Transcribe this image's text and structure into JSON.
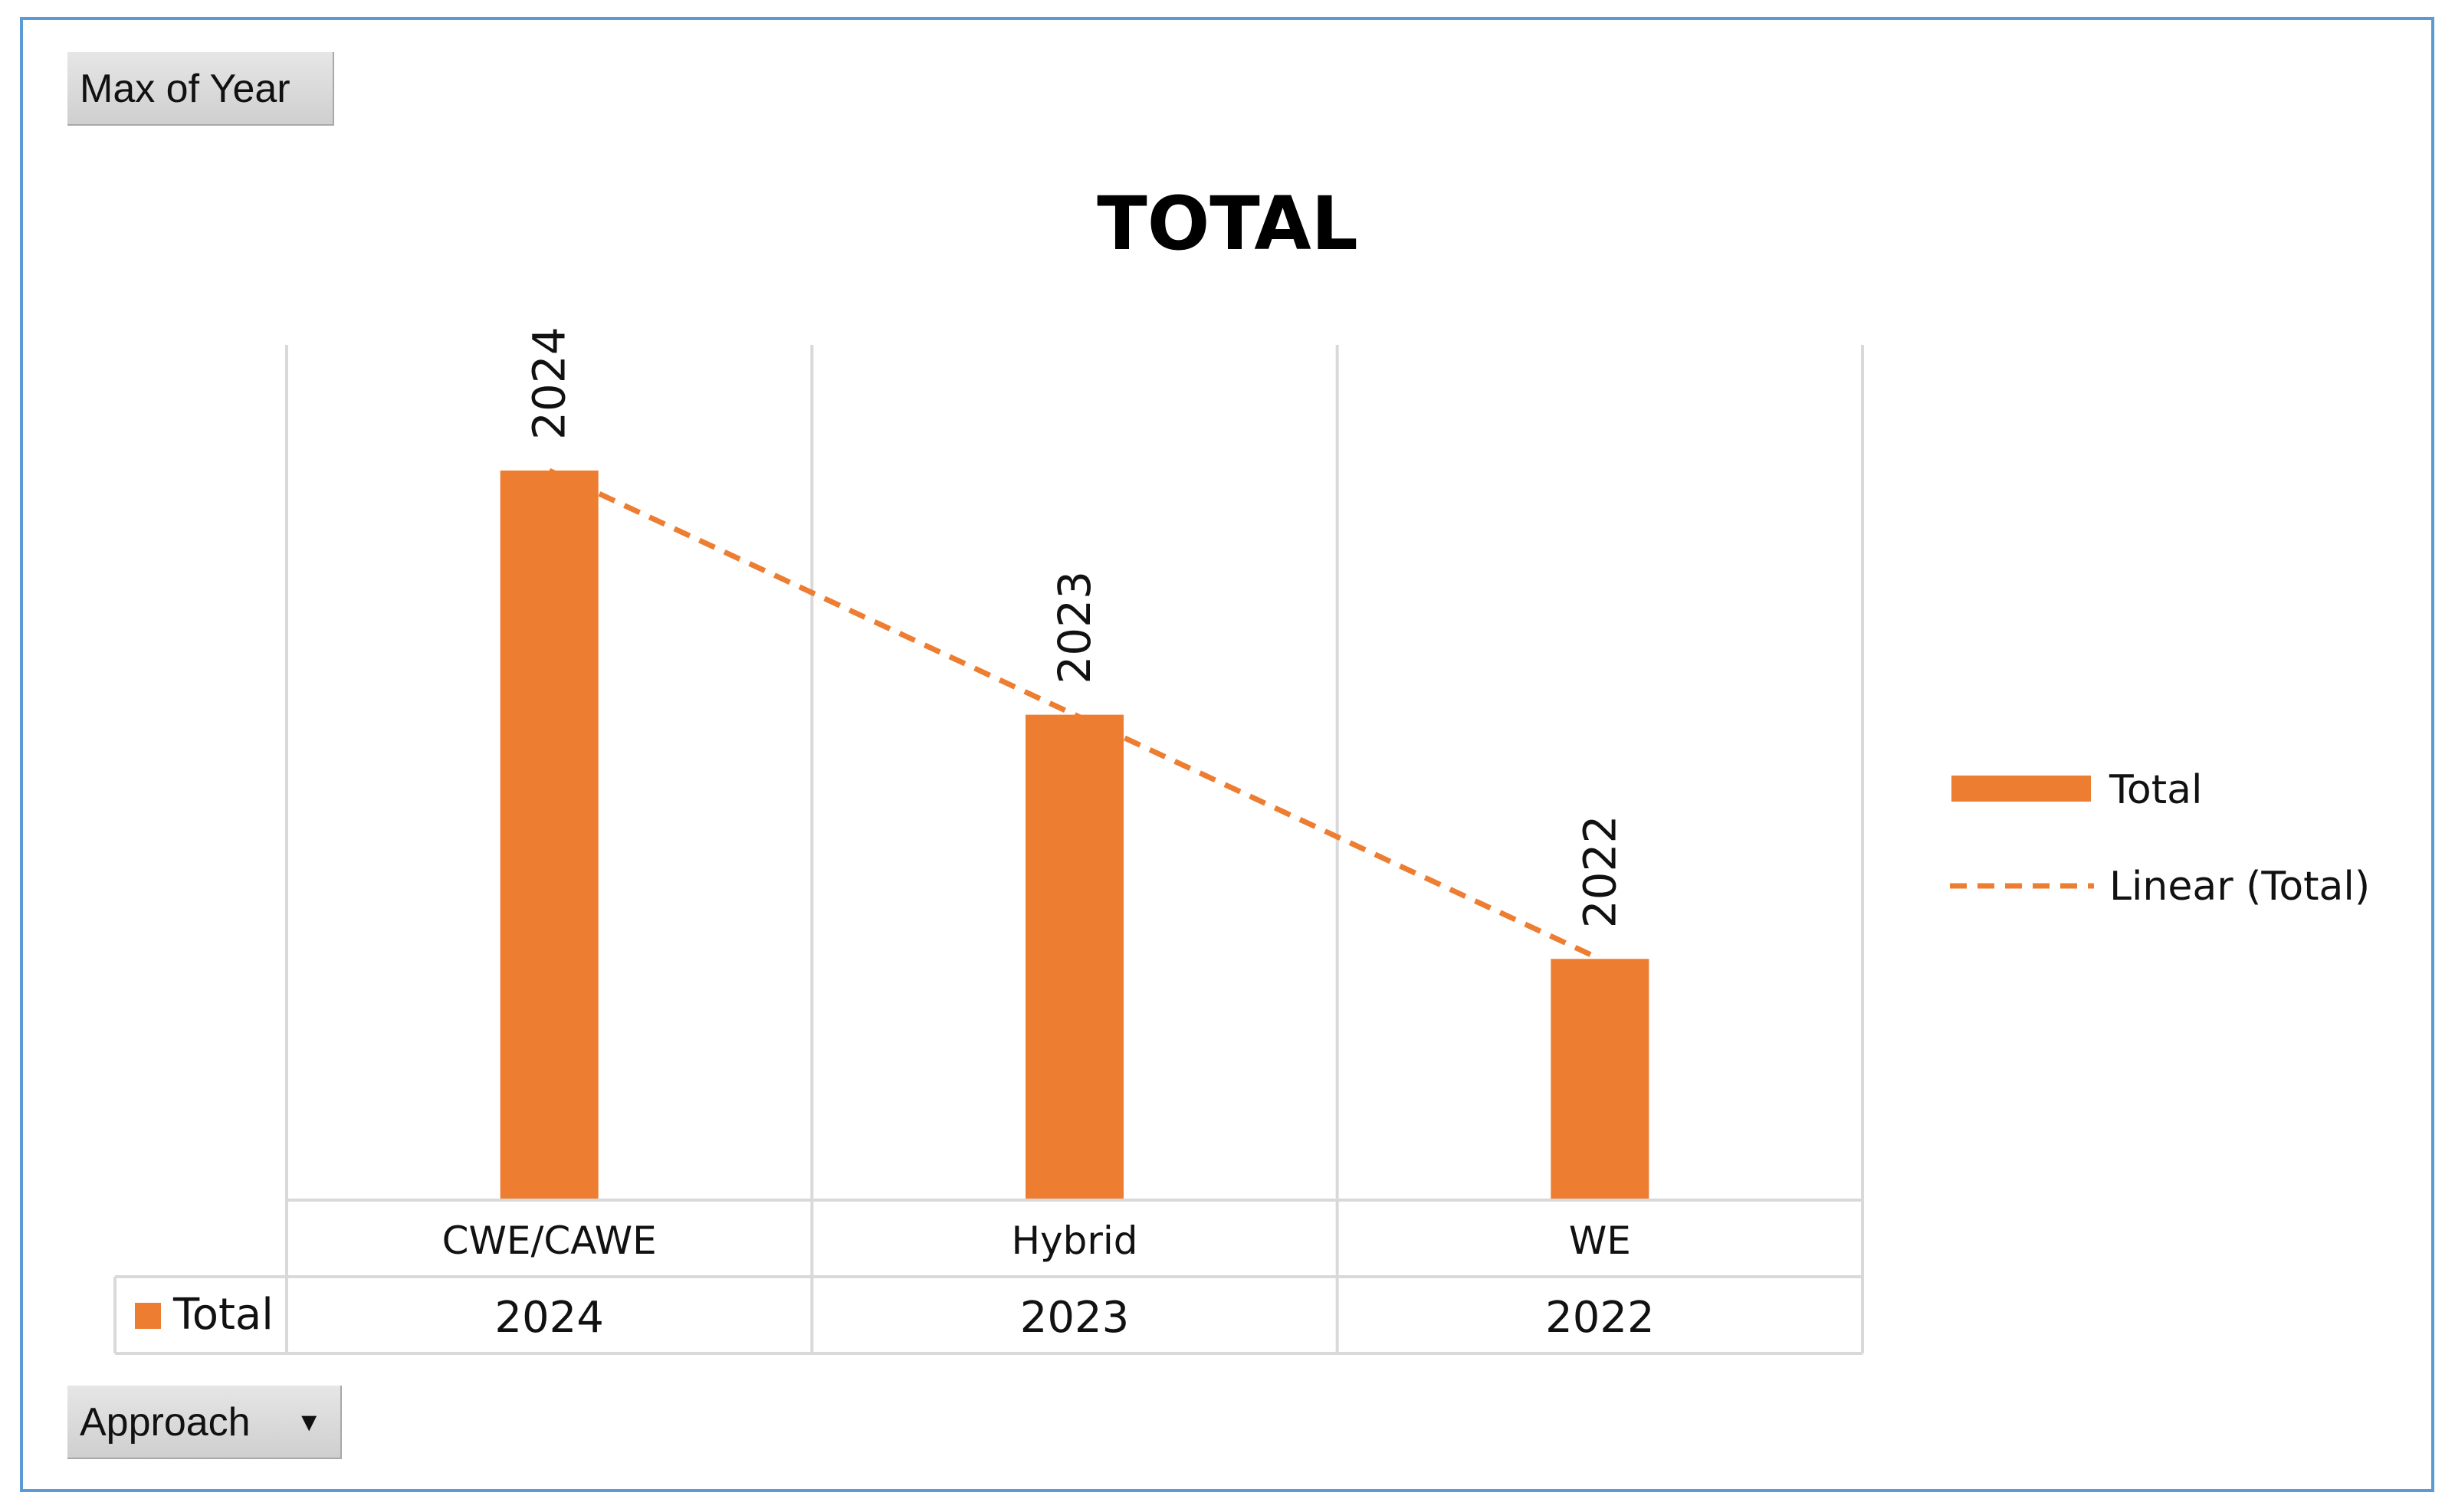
{
  "field_buttons": {
    "values_field": "Max of Year",
    "axis_field": "Approach",
    "dropdown_icon": "triangle-down-icon"
  },
  "colors": {
    "bar": "#ed7d31",
    "trendline": "#ed7d31",
    "gridline": "#d9d9d9",
    "frame": "#5b9bd5"
  },
  "chart_data": {
    "type": "bar",
    "title": "TOTAL",
    "categories": [
      "CWE/CAWE",
      "Hybrid",
      "WE"
    ],
    "series": [
      {
        "name": "Total",
        "values": [
          2024,
          2023,
          2022
        ]
      }
    ],
    "data_labels": [
      "2024",
      "2023",
      "2022"
    ],
    "trendline": {
      "type": "linear",
      "name": "Linear (Total)",
      "style": "dashed"
    },
    "legend_position": "right",
    "data_table": {
      "series_label": "Total",
      "values": [
        "2024",
        "2023",
        "2022"
      ]
    },
    "ylim": [
      2021.0122,
      2024.0
    ],
    "vertical_gridlines": true
  }
}
